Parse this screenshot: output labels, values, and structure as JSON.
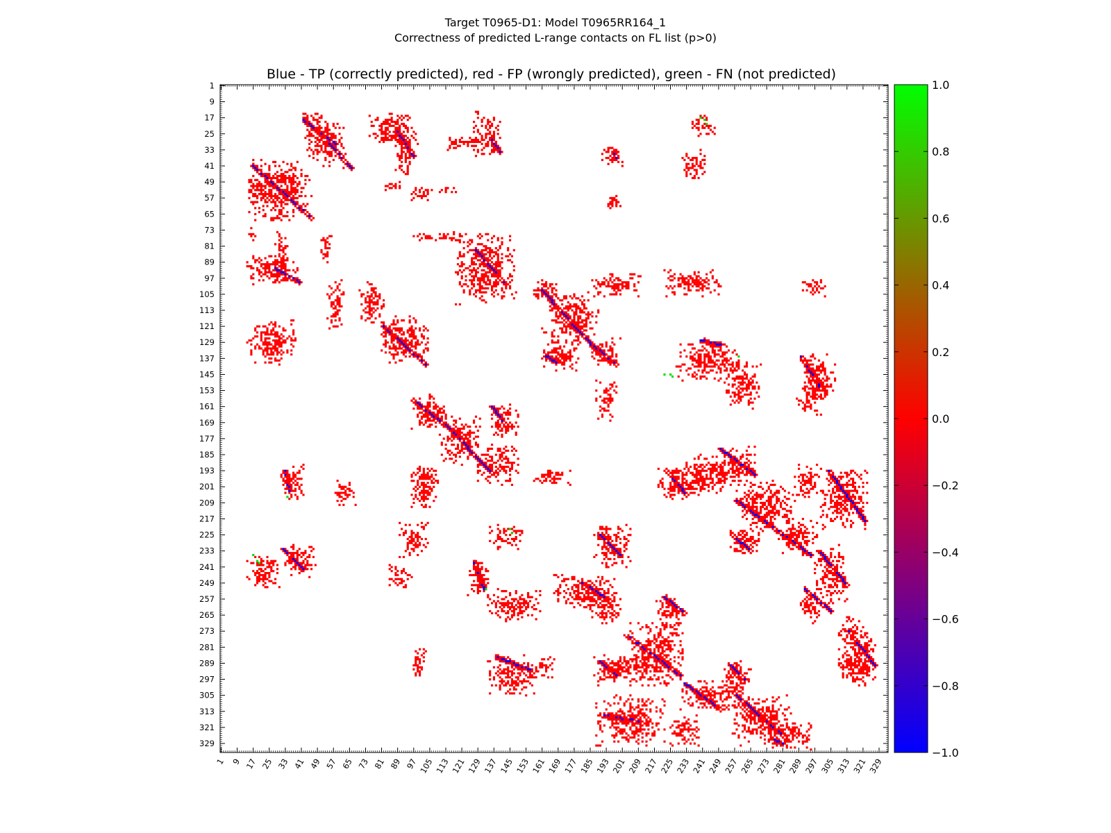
{
  "figure": {
    "title_line1": "Target T0965-D1: Model T0965RR164_1",
    "title_line2": "Correctness of predicted L-range contacts on FL list (p>0)"
  },
  "chart_data": {
    "type": "heatmap",
    "title": "Blue - TP (correctly predicted), red - FP (wrongly predicted), green - FN (not predicted)",
    "xlabel": "",
    "ylabel": "",
    "xlim": [
      1,
      333
    ],
    "ylim": [
      1,
      333
    ],
    "y_inverted": true,
    "x_tick_labels": [
      "1",
      "9",
      "17",
      "25",
      "33",
      "41",
      "49",
      "57",
      "65",
      "73",
      "81",
      "89",
      "97",
      "105",
      "113",
      "121",
      "129",
      "137",
      "145",
      "153",
      "161",
      "169",
      "177",
      "185",
      "193",
      "201",
      "209",
      "217",
      "225",
      "233",
      "241",
      "249",
      "257",
      "265",
      "273",
      "281",
      "289",
      "297",
      "305",
      "313",
      "321",
      "329"
    ],
    "y_tick_labels": [
      "1",
      "9",
      "17",
      "25",
      "33",
      "41",
      "49",
      "57",
      "65",
      "73",
      "81",
      "89",
      "97",
      "105",
      "113",
      "121",
      "129",
      "137",
      "145",
      "153",
      "161",
      "169",
      "177",
      "185",
      "193",
      "201",
      "209",
      "217",
      "225",
      "233",
      "241",
      "249",
      "257",
      "265",
      "273",
      "281",
      "289",
      "297",
      "305",
      "313",
      "321",
      "329"
    ],
    "colorbar": {
      "range": [
        -1.0,
        1.0
      ],
      "tick_labels": [
        "1.0",
        "0.8",
        "0.6",
        "0.4",
        "0.2",
        "0.0",
        "−0.2",
        "−0.4",
        "−0.6",
        "−0.8",
        "−1.0"
      ],
      "tick_values": [
        1.0,
        0.8,
        0.6,
        0.4,
        0.2,
        0.0,
        -0.2,
        -0.4,
        -0.6,
        -0.8,
        -1.0
      ],
      "colors": {
        "top": "#00ff00",
        "middle": "#ff0000",
        "bottom": "#0000ff"
      }
    },
    "categories": {
      "TP": {
        "color": "#0000ff",
        "value": -1.0
      },
      "FP": {
        "color": "#ff0000",
        "value": 0.0
      },
      "FN": {
        "color": "#00dd00",
        "value": 1.0
      }
    },
    "regions": [
      {
        "x": [
          40,
          52
        ],
        "y": [
          14,
          20
        ]
      },
      {
        "x": [
          43,
          63
        ],
        "y": [
          18,
          42
        ]
      },
      {
        "x": [
          75,
          95
        ],
        "y": [
          14,
          30
        ]
      },
      {
        "x": [
          88,
          98
        ],
        "y": [
          16,
          46
        ]
      },
      {
        "x": [
          76,
          100
        ],
        "y": [
          25,
          30
        ]
      },
      {
        "x": [
          126,
          140
        ],
        "y": [
          14,
          36
        ]
      },
      {
        "x": [
          112,
          130
        ],
        "y": [
          26,
          33
        ]
      },
      {
        "x": [
          190,
          202
        ],
        "y": [
          31,
          41
        ]
      },
      {
        "x": [
          231,
          243
        ],
        "y": [
          33,
          48
        ]
      },
      {
        "x": [
          235,
          248
        ],
        "y": [
          16,
          26
        ]
      },
      {
        "x": [
          14,
          46
        ],
        "y": [
          38,
          68
        ]
      },
      {
        "x": [
          14,
          26
        ],
        "y": [
          48,
          56
        ]
      },
      {
        "x": [
          79,
          96
        ],
        "y": [
          49,
          53
        ]
      },
      {
        "x": [
          95,
          105
        ],
        "y": [
          51,
          58
        ]
      },
      {
        "x": [
          105,
          120
        ],
        "y": [
          51,
          55
        ]
      },
      {
        "x": [
          193,
          200
        ],
        "y": [
          55,
          63
        ]
      },
      {
        "x": [
          14,
          18
        ],
        "y": [
          72,
          78
        ]
      },
      {
        "x": [
          14,
          40
        ],
        "y": [
          85,
          100
        ]
      },
      {
        "x": [
          28,
          34
        ],
        "y": [
          74,
          99
        ]
      },
      {
        "x": [
          50,
          56
        ],
        "y": [
          76,
          90
        ]
      },
      {
        "x": [
          95,
          125
        ],
        "y": [
          74,
          79
        ]
      },
      {
        "x": [
          118,
          148
        ],
        "y": [
          75,
          110
        ]
      },
      {
        "x": [
          54,
          62
        ],
        "y": [
          98,
          122
        ]
      },
      {
        "x": [
          70,
          82
        ],
        "y": [
          98,
          120
        ]
      },
      {
        "x": [
          156,
          170
        ],
        "y": [
          97,
          108
        ]
      },
      {
        "x": [
          161,
          190
        ],
        "y": [
          104,
          130
        ]
      },
      {
        "x": [
          184,
          210
        ],
        "y": [
          95,
          106
        ]
      },
      {
        "x": [
          222,
          250
        ],
        "y": [
          93,
          106
        ]
      },
      {
        "x": [
          289,
          302
        ],
        "y": [
          97,
          106
        ]
      },
      {
        "x": [
          80,
          105
        ],
        "y": [
          116,
          140
        ]
      },
      {
        "x": [
          14,
          38
        ],
        "y": [
          118,
          140
        ]
      },
      {
        "x": [
          185,
          200
        ],
        "y": [
          127,
          141
        ]
      },
      {
        "x": [
          160,
          180
        ],
        "y": [
          128,
          143
        ]
      },
      {
        "x": [
          228,
          260
        ],
        "y": [
          128,
          148
        ]
      },
      {
        "x": [
          252,
          270
        ],
        "y": [
          138,
          162
        ]
      },
      {
        "x": [
          290,
          308
        ],
        "y": [
          135,
          158
        ]
      },
      {
        "x": [
          288,
          300
        ],
        "y": [
          150,
          165
        ]
      },
      {
        "x": [
          188,
          198
        ],
        "y": [
          148,
          168
        ]
      },
      {
        "x": [
          96,
          113
        ],
        "y": [
          155,
          172
        ]
      },
      {
        "x": [
          110,
          130
        ],
        "y": [
          165,
          190
        ]
      },
      {
        "x": [
          128,
          150
        ],
        "y": [
          180,
          200
        ]
      },
      {
        "x": [
          135,
          150
        ],
        "y": [
          160,
          178
        ]
      },
      {
        "x": [
          250,
          268
        ],
        "y": [
          181,
          200
        ]
      },
      {
        "x": [
          230,
          258
        ],
        "y": [
          185,
          205
        ]
      },
      {
        "x": [
          219,
          240
        ],
        "y": [
          192,
          208
        ]
      },
      {
        "x": [
          95,
          110
        ],
        "y": [
          190,
          212
        ]
      },
      {
        "x": [
          31,
          42
        ],
        "y": [
          190,
          208
        ]
      },
      {
        "x": [
          57,
          68
        ],
        "y": [
          198,
          210
        ]
      },
      {
        "x": [
          157,
          175
        ],
        "y": [
          192,
          200
        ]
      },
      {
        "x": [
          258,
          286
        ],
        "y": [
          198,
          222
        ]
      },
      {
        "x": [
          279,
          298
        ],
        "y": [
          215,
          235
        ]
      },
      {
        "x": [
          286,
          300
        ],
        "y": [
          190,
          208
        ]
      },
      {
        "x": [
          300,
          323
        ],
        "y": [
          192,
          222
        ]
      },
      {
        "x": [
          90,
          104
        ],
        "y": [
          219,
          236
        ]
      },
      {
        "x": [
          135,
          152
        ],
        "y": [
          219,
          232
        ]
      },
      {
        "x": [
          187,
          205
        ],
        "y": [
          220,
          242
        ]
      },
      {
        "x": [
          253,
          271
        ],
        "y": [
          221,
          235
        ]
      },
      {
        "x": [
          14,
          30
        ],
        "y": [
          234,
          252
        ]
      },
      {
        "x": [
          31,
          48
        ],
        "y": [
          230,
          246
        ]
      },
      {
        "x": [
          85,
          96
        ],
        "y": [
          240,
          252
        ]
      },
      {
        "x": [
          124,
          135
        ],
        "y": [
          238,
          255
        ]
      },
      {
        "x": [
          134,
          160
        ],
        "y": [
          252,
          268
        ]
      },
      {
        "x": [
          167,
          200
        ],
        "y": [
          245,
          262
        ]
      },
      {
        "x": [
          185,
          200
        ],
        "y": [
          255,
          270
        ]
      },
      {
        "x": [
          218,
          232
        ],
        "y": [
          255,
          272
        ]
      },
      {
        "x": [
          289,
          300
        ],
        "y": [
          253,
          270
        ]
      },
      {
        "x": [
          297,
          313
        ],
        "y": [
          230,
          260
        ]
      },
      {
        "x": [
          308,
          323
        ],
        "y": [
          265,
          300
        ]
      },
      {
        "x": [
          316,
          327
        ],
        "y": [
          275,
          300
        ]
      },
      {
        "x": [
          205,
          232
        ],
        "y": [
          268,
          300
        ]
      },
      {
        "x": [
          198,
          214
        ],
        "y": [
          285,
          298
        ]
      },
      {
        "x": [
          186,
          205
        ],
        "y": [
          285,
          300
        ]
      },
      {
        "x": [
          96,
          104
        ],
        "y": [
          280,
          296
        ]
      },
      {
        "x": [
          134,
          158
        ],
        "y": [
          285,
          305
        ]
      },
      {
        "x": [
          155,
          168
        ],
        "y": [
          286,
          296
        ]
      },
      {
        "x": [
          250,
          265
        ],
        "y": [
          288,
          302
        ]
      },
      {
        "x": [
          230,
          262
        ],
        "y": [
          297,
          312
        ]
      },
      {
        "x": [
          256,
          285
        ],
        "y": [
          305,
          330
        ]
      },
      {
        "x": [
          270,
          295
        ],
        "y": [
          316,
          332
        ]
      },
      {
        "x": [
          188,
          222
        ],
        "y": [
          305,
          330
        ]
      },
      {
        "x": [
          225,
          240
        ],
        "y": [
          315,
          330
        ]
      }
    ],
    "tp_segments": [
      {
        "x": [
          42,
          58
        ],
        "y": [
          18,
          30
        ]
      },
      {
        "x": [
          55,
          66
        ],
        "y": [
          30,
          42
        ]
      },
      {
        "x": [
          89,
          97
        ],
        "y": [
          24,
          36
        ]
      },
      {
        "x": [
          136,
          140
        ],
        "y": [
          28,
          34
        ]
      },
      {
        "x": [
          196,
          198
        ],
        "y": [
          33,
          37
        ]
      },
      {
        "x": [
          17,
          46
        ],
        "y": [
          41,
          67
        ]
      },
      {
        "x": [
          28,
          40
        ],
        "y": [
          92,
          99
        ]
      },
      {
        "x": [
          128,
          143
        ],
        "y": [
          83,
          100
        ]
      },
      {
        "x": [
          161,
          190
        ],
        "y": [
          103,
          135
        ]
      },
      {
        "x": [
          186,
          198
        ],
        "y": [
          130,
          140
        ]
      },
      {
        "x": [
          81,
          103
        ],
        "y": [
          120,
          140
        ]
      },
      {
        "x": [
          240,
          250
        ],
        "y": [
          128,
          130
        ]
      },
      {
        "x": [
          162,
          168
        ],
        "y": [
          135,
          139
        ]
      },
      {
        "x": [
          290,
          300
        ],
        "y": [
          136,
          152
        ]
      },
      {
        "x": [
          96,
          115
        ],
        "y": [
          157,
          172
        ]
      },
      {
        "x": [
          113,
          135
        ],
        "y": [
          170,
          193
        ]
      },
      {
        "x": [
          136,
          143
        ],
        "y": [
          161,
          170
        ]
      },
      {
        "x": [
          250,
          267
        ],
        "y": [
          182,
          195
        ]
      },
      {
        "x": [
          223,
          233
        ],
        "y": [
          193,
          205
        ]
      },
      {
        "x": [
          33,
          35
        ],
        "y": [
          193,
          203
        ]
      },
      {
        "x": [
          258,
          295
        ],
        "y": [
          208,
          235
        ]
      },
      {
        "x": [
          304,
          322
        ],
        "y": [
          193,
          218
        ]
      },
      {
        "x": [
          190,
          200
        ],
        "y": [
          225,
          235
        ]
      },
      {
        "x": [
          256,
          265
        ],
        "y": [
          225,
          233
        ]
      },
      {
        "x": [
          32,
          42
        ],
        "y": [
          232,
          242
        ]
      },
      {
        "x": [
          127,
          132
        ],
        "y": [
          238,
          252
        ]
      },
      {
        "x": [
          180,
          195
        ],
        "y": [
          248,
          258
        ]
      },
      {
        "x": [
          222,
          232
        ],
        "y": [
          256,
          264
        ]
      },
      {
        "x": [
          292,
          305
        ],
        "y": [
          252,
          263
        ]
      },
      {
        "x": [
          300,
          313
        ],
        "y": [
          234,
          250
        ]
      },
      {
        "x": [
          313,
          327
        ],
        "y": [
          272,
          290
        ]
      },
      {
        "x": [
          203,
          230
        ],
        "y": [
          275,
          295
        ]
      },
      {
        "x": [
          138,
          155
        ],
        "y": [
          286,
          292
        ]
      },
      {
        "x": [
          190,
          198
        ],
        "y": [
          288,
          295
        ]
      },
      {
        "x": [
          255,
          262
        ],
        "y": [
          290,
          297
        ]
      },
      {
        "x": [
          232,
          250
        ],
        "y": [
          299,
          312
        ]
      },
      {
        "x": [
          258,
          282
        ],
        "y": [
          305,
          326
        ]
      },
      {
        "x": [
          192,
          210
        ],
        "y": [
          315,
          318
        ]
      },
      {
        "x": [
          277,
          281
        ],
        "y": [
          327,
          329
        ]
      }
    ],
    "fn_points": [
      {
        "x": 240,
        "y": 17
      },
      {
        "x": 242,
        "y": 18
      },
      {
        "x": 243,
        "y": 20
      },
      {
        "x": 222,
        "y": 145
      },
      {
        "x": 225,
        "y": 145
      },
      {
        "x": 226,
        "y": 146
      },
      {
        "x": 259,
        "y": 136
      },
      {
        "x": 145,
        "y": 222
      },
      {
        "x": 146,
        "y": 224
      },
      {
        "x": 17,
        "y": 235
      },
      {
        "x": 19,
        "y": 238
      },
      {
        "x": 20,
        "y": 239
      },
      {
        "x": 34,
        "y": 206
      },
      {
        "x": 133,
        "y": 252
      }
    ]
  }
}
